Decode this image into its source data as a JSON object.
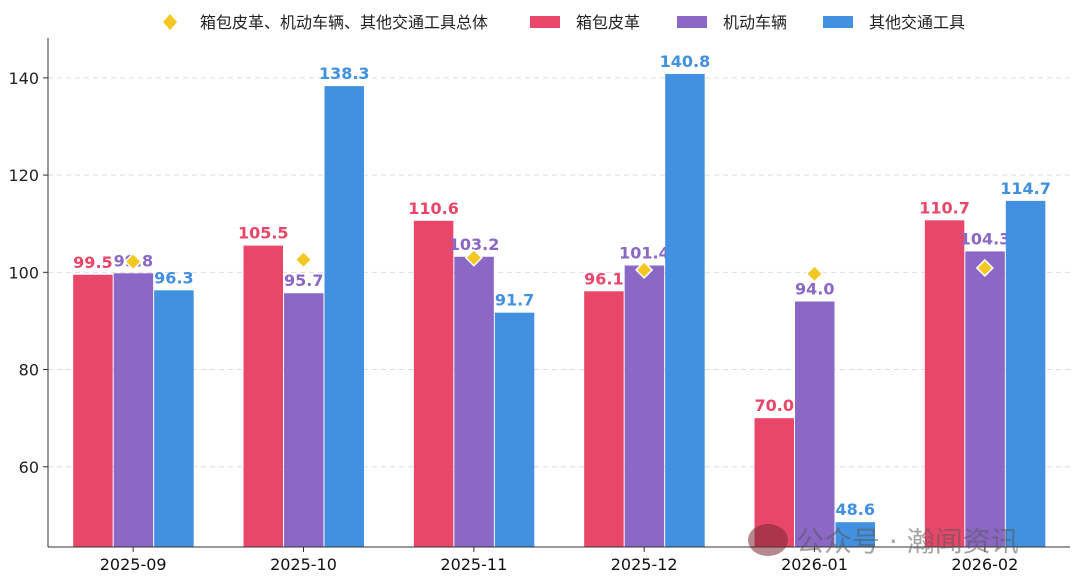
{
  "chart_data": {
    "type": "bar",
    "categories": [
      "2025-09",
      "2025-10",
      "2025-11",
      "2025-12",
      "2026-01",
      "2026-02"
    ],
    "series": [
      {
        "name": "箱包皮革",
        "color": "#E8476A",
        "values": [
          99.5,
          105.5,
          110.6,
          96.1,
          70.0,
          110.7
        ]
      },
      {
        "name": "机动车辆",
        "color": "#8B67C6",
        "values": [
          99.8,
          95.7,
          103.2,
          101.4,
          94.0,
          104.3
        ]
      },
      {
        "name": "其他交通工具",
        "color": "#4290E0",
        "values": [
          96.3,
          138.3,
          91.7,
          140.8,
          48.6,
          114.7
        ]
      }
    ],
    "overlay": {
      "name": "箱包皮革、机动车辆、其他交通工具总体",
      "type": "scatter",
      "marker": "diamond",
      "color": "#F5C723",
      "values": [
        102.2,
        102.6,
        103.0,
        100.5,
        99.7,
        100.9
      ]
    },
    "yticks": [
      60,
      80,
      100,
      120,
      140
    ],
    "ylim": [
      43.5,
      148.2
    ],
    "grid": true,
    "legend": "top",
    "title": "",
    "xlabel": "",
    "ylabel": ""
  },
  "watermark": "公众号 · 瀚闻资讯"
}
